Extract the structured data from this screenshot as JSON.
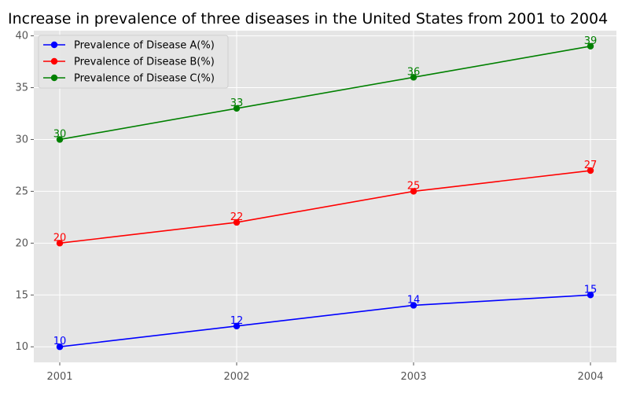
{
  "chart_data": {
    "type": "line",
    "title": "Increase in prevalence of three diseases in the United States from 2001 to 2004",
    "xlabel": "",
    "ylabel": "",
    "categories": [
      "2001",
      "2002",
      "2003",
      "2004"
    ],
    "ylim": [
      8.5,
      40.5
    ],
    "yticks": [
      10,
      15,
      20,
      25,
      30,
      35,
      40
    ],
    "grid": true,
    "legend_position": "top-left",
    "background": "#e5e5e5",
    "series": [
      {
        "name": "Prevalence of Disease A(%)",
        "color": "#0000ff",
        "values": [
          10,
          12,
          14,
          15
        ]
      },
      {
        "name": "Prevalence of Disease B(%)",
        "color": "#ff0000",
        "values": [
          20,
          22,
          25,
          27
        ]
      },
      {
        "name": "Prevalence of Disease C(%)",
        "color": "#008000",
        "values": [
          30,
          33,
          36,
          39
        ]
      }
    ]
  }
}
